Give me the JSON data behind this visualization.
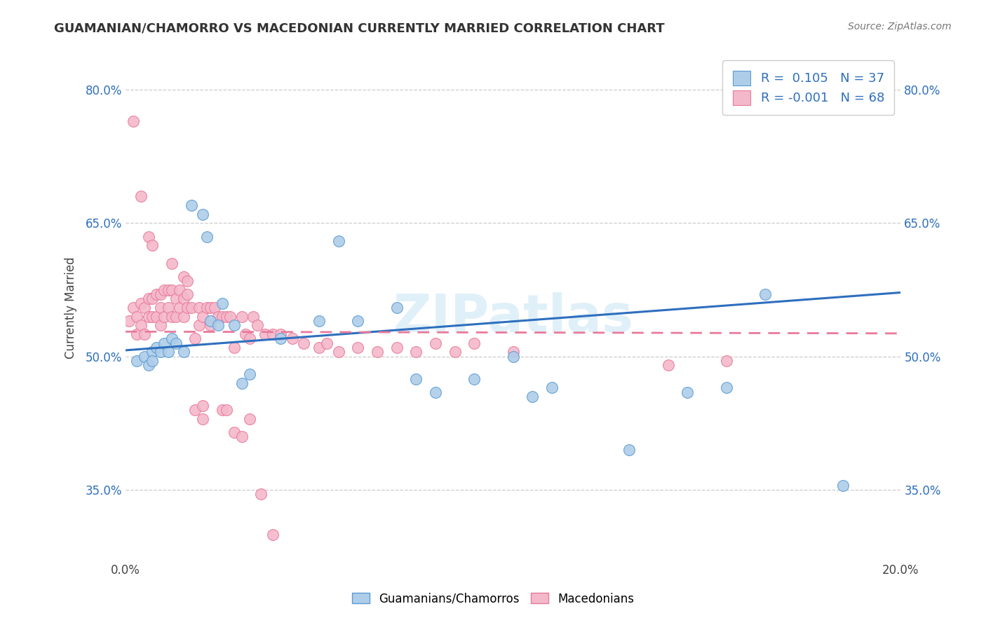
{
  "title": "GUAMANIAN/CHAMORRO VS MACEDONIAN CURRENTLY MARRIED CORRELATION CHART",
  "source": "Source: ZipAtlas.com",
  "xlabel": "",
  "ylabel": "Currently Married",
  "xlim": [
    0.0,
    0.2
  ],
  "ylim": [
    0.27,
    0.84
  ],
  "xticks": [
    0.0,
    0.05,
    0.1,
    0.15,
    0.2
  ],
  "xticklabels": [
    "0.0%",
    "",
    "",
    "",
    "20.0%"
  ],
  "yticks": [
    0.35,
    0.5,
    0.65,
    0.8
  ],
  "yticklabels": [
    "35.0%",
    "50.0%",
    "65.0%",
    "80.0%"
  ],
  "legend_labels": [
    "Guamanians/Chamorros",
    "Macedonians"
  ],
  "R_blue": "0.105",
  "N_blue": "37",
  "R_pink": "-0.001",
  "N_pink": "68",
  "blue_color": "#aecde8",
  "pink_color": "#f4b8cb",
  "blue_edge_color": "#5b9bd5",
  "pink_edge_color": "#e87a9a",
  "blue_line_color": "#2e6fbe",
  "pink_line_color": "#e87a9a",
  "background_color": "#ffffff",
  "watermark": "ZIPatlas",
  "blue_scatter_x": [
    0.003,
    0.005,
    0.006,
    0.007,
    0.007,
    0.008,
    0.009,
    0.01,
    0.011,
    0.012,
    0.013,
    0.015,
    0.017,
    0.02,
    0.021,
    0.022,
    0.024,
    0.025,
    0.028,
    0.03,
    0.032,
    0.04,
    0.05,
    0.055,
    0.06,
    0.07,
    0.075,
    0.08,
    0.09,
    0.1,
    0.105,
    0.11,
    0.13,
    0.145,
    0.155,
    0.165,
    0.185
  ],
  "blue_scatter_y": [
    0.495,
    0.5,
    0.49,
    0.505,
    0.495,
    0.51,
    0.505,
    0.515,
    0.505,
    0.52,
    0.515,
    0.505,
    0.67,
    0.66,
    0.635,
    0.54,
    0.535,
    0.56,
    0.535,
    0.47,
    0.48,
    0.52,
    0.54,
    0.63,
    0.54,
    0.555,
    0.475,
    0.46,
    0.475,
    0.5,
    0.455,
    0.465,
    0.395,
    0.46,
    0.465,
    0.57,
    0.355
  ],
  "pink_scatter_x": [
    0.001,
    0.002,
    0.003,
    0.003,
    0.004,
    0.004,
    0.005,
    0.005,
    0.006,
    0.006,
    0.007,
    0.007,
    0.008,
    0.008,
    0.009,
    0.009,
    0.009,
    0.01,
    0.01,
    0.011,
    0.011,
    0.012,
    0.012,
    0.013,
    0.013,
    0.014,
    0.014,
    0.015,
    0.015,
    0.016,
    0.016,
    0.017,
    0.018,
    0.019,
    0.019,
    0.02,
    0.021,
    0.022,
    0.022,
    0.023,
    0.024,
    0.025,
    0.026,
    0.027,
    0.028,
    0.03,
    0.031,
    0.032,
    0.033,
    0.034,
    0.036,
    0.038,
    0.04,
    0.043,
    0.046,
    0.05,
    0.052,
    0.055,
    0.06,
    0.065,
    0.07,
    0.075,
    0.08,
    0.085,
    0.09,
    0.1,
    0.14,
    0.155
  ],
  "pink_scatter_y": [
    0.54,
    0.555,
    0.545,
    0.525,
    0.56,
    0.535,
    0.555,
    0.525,
    0.565,
    0.545,
    0.565,
    0.545,
    0.57,
    0.545,
    0.57,
    0.555,
    0.535,
    0.575,
    0.545,
    0.575,
    0.555,
    0.575,
    0.545,
    0.565,
    0.545,
    0.575,
    0.555,
    0.565,
    0.545,
    0.57,
    0.555,
    0.555,
    0.52,
    0.555,
    0.535,
    0.545,
    0.555,
    0.555,
    0.535,
    0.555,
    0.545,
    0.545,
    0.545,
    0.545,
    0.51,
    0.545,
    0.525,
    0.52,
    0.545,
    0.535,
    0.525,
    0.525,
    0.525,
    0.52,
    0.515,
    0.51,
    0.515,
    0.505,
    0.51,
    0.505,
    0.51,
    0.505,
    0.515,
    0.505,
    0.515,
    0.505,
    0.49,
    0.495
  ],
  "pink_extra_x": [
    0.002,
    0.004,
    0.006,
    0.007,
    0.012,
    0.015,
    0.016,
    0.018,
    0.02,
    0.02,
    0.025,
    0.026,
    0.028,
    0.03,
    0.032,
    0.035,
    0.038
  ],
  "pink_extra_y": [
    0.765,
    0.68,
    0.635,
    0.625,
    0.605,
    0.59,
    0.585,
    0.44,
    0.43,
    0.445,
    0.44,
    0.44,
    0.415,
    0.41,
    0.43,
    0.345,
    0.3
  ]
}
